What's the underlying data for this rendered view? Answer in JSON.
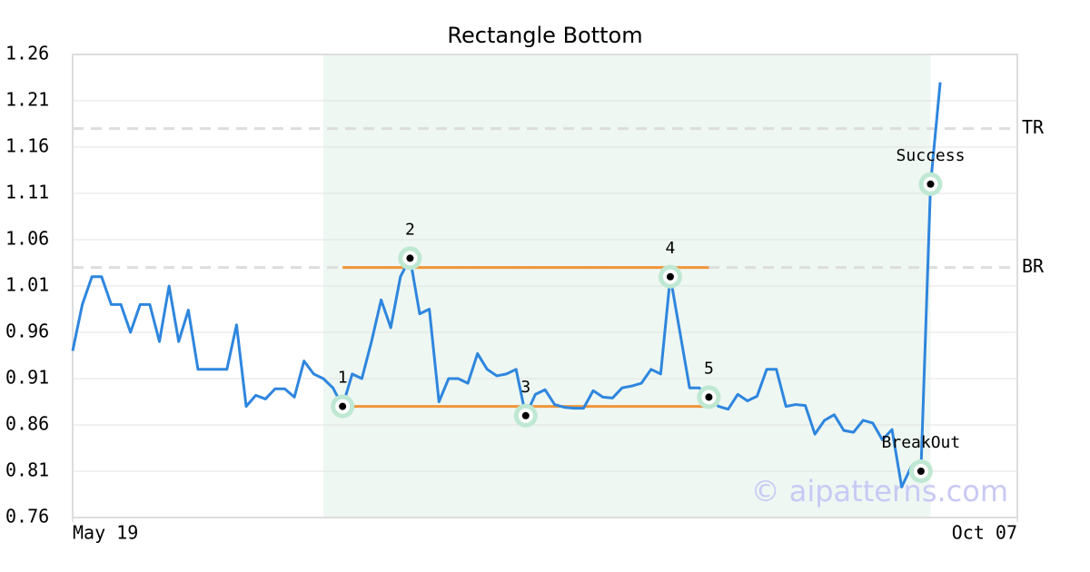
{
  "chart_data": {
    "type": "line",
    "title": "Rectangle Bottom",
    "color": "#2e86de",
    "values": [
      0.94,
      0.99,
      1.02,
      1.02,
      0.99,
      0.99,
      0.96,
      0.99,
      0.99,
      0.95,
      1.01,
      0.95,
      0.984,
      0.92,
      0.92,
      0.92,
      0.92,
      0.968,
      0.88,
      0.892,
      0.888,
      0.899,
      0.899,
      0.89,
      0.929,
      0.915,
      0.91,
      0.9,
      0.88,
      0.915,
      0.91,
      0.95,
      0.995,
      0.965,
      1.02,
      1.04,
      0.98,
      0.985,
      0.885,
      0.91,
      0.91,
      0.905,
      0.937,
      0.92,
      0.913,
      0.915,
      0.92,
      0.87,
      0.893,
      0.898,
      0.882,
      0.879,
      0.878,
      0.878,
      0.897,
      0.89,
      0.889,
      0.9,
      0.902,
      0.905,
      0.92,
      0.915,
      1.02,
      0.96,
      0.9,
      0.9,
      0.89,
      0.88,
      0.877,
      0.893,
      0.886,
      0.891,
      0.92,
      0.92,
      0.88,
      0.882,
      0.881,
      0.85,
      0.865,
      0.871,
      0.854,
      0.852,
      0.865,
      0.862,
      0.844,
      0.855,
      0.793,
      0.815,
      0.81,
      1.12,
      1.23
    ],
    "xlim": [
      0,
      98
    ],
    "xticks": [
      {
        "value": 0,
        "label": "May 19"
      },
      {
        "value": 98,
        "label": "Oct 07"
      }
    ],
    "ylim": [
      0.76,
      1.26
    ],
    "yticks": [
      0.76,
      0.81,
      0.86,
      0.91,
      0.96,
      1.01,
      1.06,
      1.11,
      1.16,
      1.21,
      1.26
    ],
    "grid": true,
    "shade": {
      "x": [
        26,
        89
      ],
      "color": "#eef7f2"
    },
    "levels": [
      {
        "label": "TR",
        "value": 1.18
      },
      {
        "label": "BR",
        "value": 1.03
      }
    ],
    "segments": [
      {
        "x": [
          28,
          66
        ],
        "y": 1.03,
        "color": "#f0953a"
      },
      {
        "x": [
          28,
          66
        ],
        "y": 0.88,
        "color": "#f0953a"
      }
    ],
    "points": [
      {
        "label": "1",
        "x": 28,
        "y": 0.88
      },
      {
        "label": "2",
        "x": 35,
        "y": 1.04
      },
      {
        "label": "3",
        "x": 47,
        "y": 0.87
      },
      {
        "label": "4",
        "x": 62,
        "y": 1.02
      },
      {
        "label": "5",
        "x": 66,
        "y": 0.89
      },
      {
        "label": "BreakOut",
        "x": 88,
        "y": 0.81
      },
      {
        "label": "Success",
        "x": 89,
        "y": 1.12
      }
    ],
    "watermark": "© aipatterns.com"
  }
}
